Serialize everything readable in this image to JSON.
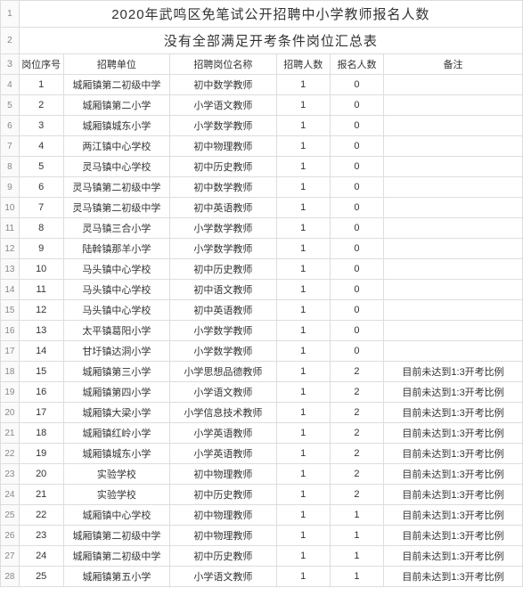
{
  "title1": "2020年武鸣区免笔试公开招聘中小学教师报名人数",
  "title2": "没有全部满足开考条件岗位汇总表",
  "headers": {
    "seq": "岗位序号",
    "unit": "招聘单位",
    "position": "招聘岗位名称",
    "hire": "招聘人数",
    "apply": "报名人数",
    "remark": "备注"
  },
  "rows": [
    {
      "n": "4",
      "seq": "1",
      "unit": "城厢镇第二初级中学",
      "pos": "初中数学教师",
      "hire": "1",
      "apply": "0",
      "remark": ""
    },
    {
      "n": "5",
      "seq": "2",
      "unit": "城厢镇第二小学",
      "pos": "小学语文教师",
      "hire": "1",
      "apply": "0",
      "remark": ""
    },
    {
      "n": "6",
      "seq": "3",
      "unit": "城厢镇城东小学",
      "pos": "小学数学教师",
      "hire": "1",
      "apply": "0",
      "remark": ""
    },
    {
      "n": "7",
      "seq": "4",
      "unit": "两江镇中心学校",
      "pos": "初中物理教师",
      "hire": "1",
      "apply": "0",
      "remark": ""
    },
    {
      "n": "8",
      "seq": "5",
      "unit": "灵马镇中心学校",
      "pos": "初中历史教师",
      "hire": "1",
      "apply": "0",
      "remark": ""
    },
    {
      "n": "9",
      "seq": "6",
      "unit": "灵马镇第二初级中学",
      "pos": "初中数学教师",
      "hire": "1",
      "apply": "0",
      "remark": ""
    },
    {
      "n": "10",
      "seq": "7",
      "unit": "灵马镇第二初级中学",
      "pos": "初中英语教师",
      "hire": "1",
      "apply": "0",
      "remark": ""
    },
    {
      "n": "11",
      "seq": "8",
      "unit": "灵马镇三合小学",
      "pos": "小学数学教师",
      "hire": "1",
      "apply": "0",
      "remark": ""
    },
    {
      "n": "12",
      "seq": "9",
      "unit": "陆斡镇那羊小学",
      "pos": "小学数学教师",
      "hire": "1",
      "apply": "0",
      "remark": ""
    },
    {
      "n": "13",
      "seq": "10",
      "unit": "马头镇中心学校",
      "pos": "初中历史教师",
      "hire": "1",
      "apply": "0",
      "remark": ""
    },
    {
      "n": "14",
      "seq": "11",
      "unit": "马头镇中心学校",
      "pos": "初中语文教师",
      "hire": "1",
      "apply": "0",
      "remark": ""
    },
    {
      "n": "15",
      "seq": "12",
      "unit": "马头镇中心学校",
      "pos": "初中英语教师",
      "hire": "1",
      "apply": "0",
      "remark": ""
    },
    {
      "n": "16",
      "seq": "13",
      "unit": "太平镇葛阳小学",
      "pos": "小学数学教师",
      "hire": "1",
      "apply": "0",
      "remark": ""
    },
    {
      "n": "17",
      "seq": "14",
      "unit": "甘圩镇达洞小学",
      "pos": "小学数学教师",
      "hire": "1",
      "apply": "0",
      "remark": ""
    },
    {
      "n": "18",
      "seq": "15",
      "unit": "城厢镇第三小学",
      "pos": "小学思想品德教师",
      "hire": "1",
      "apply": "2",
      "remark": "目前未达到1:3开考比例"
    },
    {
      "n": "19",
      "seq": "16",
      "unit": "城厢镇第四小学",
      "pos": "小学语文教师",
      "hire": "1",
      "apply": "2",
      "remark": "目前未达到1:3开考比例"
    },
    {
      "n": "20",
      "seq": "17",
      "unit": "城厢镇大梁小学",
      "pos": "小学信息技术教师",
      "hire": "1",
      "apply": "2",
      "remark": "目前未达到1:3开考比例"
    },
    {
      "n": "21",
      "seq": "18",
      "unit": "城厢镇红岭小学",
      "pos": "小学英语教师",
      "hire": "1",
      "apply": "2",
      "remark": "目前未达到1:3开考比例"
    },
    {
      "n": "22",
      "seq": "19",
      "unit": "城厢镇城东小学",
      "pos": "小学英语教师",
      "hire": "1",
      "apply": "2",
      "remark": "目前未达到1:3开考比例"
    },
    {
      "n": "23",
      "seq": "20",
      "unit": "实验学校",
      "pos": "初中物理教师",
      "hire": "1",
      "apply": "2",
      "remark": "目前未达到1:3开考比例"
    },
    {
      "n": "24",
      "seq": "21",
      "unit": "实验学校",
      "pos": "初中历史教师",
      "hire": "1",
      "apply": "2",
      "remark": "目前未达到1:3开考比例"
    },
    {
      "n": "25",
      "seq": "22",
      "unit": "城厢镇中心学校",
      "pos": "初中物理教师",
      "hire": "1",
      "apply": "1",
      "remark": "目前未达到1:3开考比例"
    },
    {
      "n": "26",
      "seq": "23",
      "unit": "城厢镇第二初级中学",
      "pos": "初中物理教师",
      "hire": "1",
      "apply": "1",
      "remark": "目前未达到1:3开考比例"
    },
    {
      "n": "27",
      "seq": "24",
      "unit": "城厢镇第二初级中学",
      "pos": "初中历史教师",
      "hire": "1",
      "apply": "1",
      "remark": "目前未达到1:3开考比例"
    },
    {
      "n": "28",
      "seq": "25",
      "unit": "城厢镇第五小学",
      "pos": "小学语文教师",
      "hire": "1",
      "apply": "1",
      "remark": "目前未达到1:3开考比例"
    }
  ],
  "colors": {
    "border": "#dddddd",
    "text": "#333333",
    "rownum": "#888888",
    "rownum_bg": "#fafafa",
    "background": "#ffffff"
  },
  "font_sizes": {
    "title": 15,
    "body": 11,
    "rownum": 10
  }
}
